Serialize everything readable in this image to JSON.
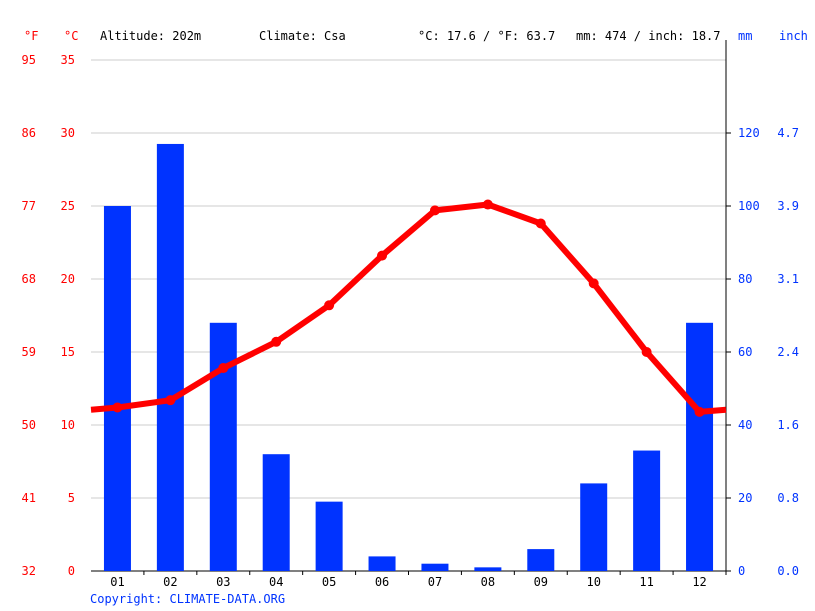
{
  "header": {
    "unit_f": "°F",
    "unit_c": "°C",
    "altitude": "Altitude: 202m",
    "climate": "Climate: Csa",
    "temp_avg": "°C: 17.6 / °F: 63.7",
    "precip_total": "mm: 474 / inch: 18.7",
    "unit_mm": "mm",
    "unit_inch": "inch"
  },
  "footer": {
    "copyright": "Copyright: CLIMATE-DATA.ORG"
  },
  "colors": {
    "temperature": "#ff0000",
    "precipitation": "#0033ff",
    "grid": "#cccccc"
  },
  "chart_data": {
    "type": "bar",
    "categories": [
      "01",
      "02",
      "03",
      "04",
      "05",
      "06",
      "07",
      "08",
      "09",
      "10",
      "11",
      "12"
    ],
    "series": [
      {
        "name": "Precipitation (mm)",
        "type": "bar",
        "axis": "right",
        "values": [
          100,
          117,
          68,
          32,
          19,
          4,
          2,
          1,
          6,
          24,
          33,
          68
        ]
      },
      {
        "name": "Temperature (°C)",
        "type": "line",
        "axis": "left",
        "values": [
          11.2,
          11.7,
          13.9,
          15.7,
          18.2,
          21.6,
          24.7,
          25.1,
          23.8,
          19.7,
          15.0,
          10.9
        ]
      }
    ],
    "left_axis": {
      "ylim": [
        0,
        35
      ],
      "ticks_c": [
        "0",
        "5",
        "10",
        "15",
        "20",
        "25",
        "30",
        "35"
      ],
      "ticks_f": [
        "32",
        "41",
        "50",
        "59",
        "68",
        "77",
        "86",
        "95"
      ]
    },
    "right_axis": {
      "ylim": [
        0,
        140
      ],
      "ticks_mm": [
        "0",
        "20",
        "40",
        "60",
        "80",
        "100",
        "120"
      ],
      "ticks_inch": [
        "0.0",
        "0.8",
        "1.6",
        "2.4",
        "3.1",
        "3.9",
        "4.7"
      ]
    },
    "grid": true
  }
}
